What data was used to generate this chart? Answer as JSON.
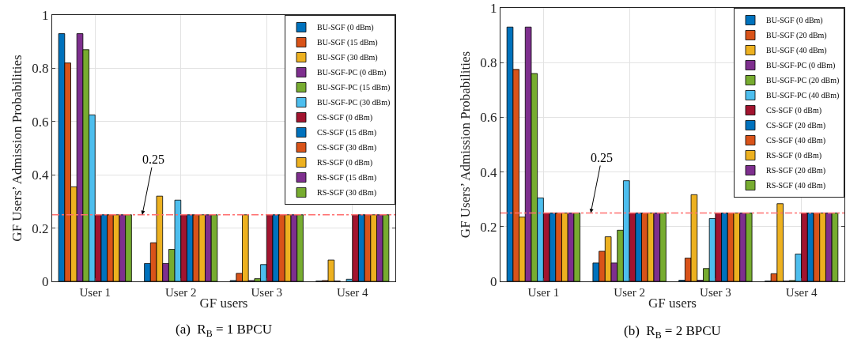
{
  "chart_data": [
    {
      "type": "bar",
      "title": "(a)  R$_{B}$ = 1 BPCU",
      "xlabel": "GF users",
      "ylabel": "GF Users’ Admission Probabilities",
      "categories": [
        "User 1",
        "User 2",
        "User 3",
        "User 4"
      ],
      "ylim": [
        0,
        1
      ],
      "yticks": [
        0,
        0.2,
        0.4,
        0.6,
        0.8,
        1
      ],
      "grid": true,
      "legend": "top right",
      "ref_lines": [
        {
          "axis": "y",
          "value": 0.25,
          "label": "0.25",
          "color": "#ff6f6f",
          "line_style": "dashdot"
        }
      ],
      "series": [
        {
          "name": "BU-SGF (0 dBm)",
          "color": "#0072bd",
          "values": [
            0.93,
            0.067,
            0.003,
            0.001
          ]
        },
        {
          "name": "BU-SGF (15 dBm)",
          "color": "#d95319",
          "values": [
            0.82,
            0.145,
            0.03,
            0.003
          ]
        },
        {
          "name": "BU-SGF (30 dBm)",
          "color": "#edb120",
          "values": [
            0.355,
            0.32,
            0.25,
            0.08
          ]
        },
        {
          "name": "BU-SGF-PC (0 dBm)",
          "color": "#7e2f8e",
          "values": [
            0.93,
            0.067,
            0.003,
            0.001
          ]
        },
        {
          "name": "BU-SGF-PC (15 dBm)",
          "color": "#77ac30",
          "values": [
            0.87,
            0.12,
            0.01,
            null
          ]
        },
        {
          "name": "BU-SGF-PC (30 dBm)",
          "color": "#4dbeee",
          "values": [
            0.625,
            0.305,
            0.063,
            0.008
          ]
        },
        {
          "name": "CS-SGF (0 dBm)",
          "color": "#a2142f",
          "values": [
            0.25,
            0.25,
            0.25,
            0.25
          ]
        },
        {
          "name": "CS-SGF (15 dBm)",
          "color": "#0072bd",
          "values": [
            0.25,
            0.25,
            0.25,
            0.25
          ]
        },
        {
          "name": "CS-SGF (30 dBm)",
          "color": "#d95319",
          "values": [
            0.25,
            0.25,
            0.25,
            0.25
          ]
        },
        {
          "name": "RS-SGF (0 dBm)",
          "color": "#edb120",
          "values": [
            0.25,
            0.25,
            0.25,
            0.25
          ]
        },
        {
          "name": "RS-SGF (15 dBm)",
          "color": "#7e2f8e",
          "values": [
            0.25,
            0.25,
            0.25,
            0.25
          ]
        },
        {
          "name": "RS-SGF (30 dBm)",
          "color": "#77ac30",
          "values": [
            0.25,
            0.25,
            0.25,
            0.25
          ]
        }
      ]
    },
    {
      "type": "bar",
      "title": "(b)  R$_{B}$ = 2 BPCU",
      "xlabel": "GF users",
      "ylabel": "GF Users’ Admission Probabilities",
      "categories": [
        "User 1",
        "User 2",
        "User 3",
        "User 4"
      ],
      "ylim": [
        0,
        1
      ],
      "yticks": [
        0,
        0.2,
        0.4,
        0.6,
        0.8,
        1
      ],
      "grid": true,
      "legend": "top right",
      "ref_lines": [
        {
          "axis": "y",
          "value": 0.25,
          "label": "0.25",
          "color": "#ff6f6f",
          "line_style": "dashdot"
        }
      ],
      "series": [
        {
          "name": "BU-SGF (0 dBm)",
          "color": "#0072bd",
          "values": [
            0.93,
            0.067,
            0.004,
            0.001
          ]
        },
        {
          "name": "BU-SGF (20 dBm)",
          "color": "#d95319",
          "values": [
            0.775,
            0.11,
            0.085,
            0.028
          ]
        },
        {
          "name": "BU-SGF (40 dBm)",
          "color": "#edb120",
          "values": [
            0.235,
            0.163,
            0.317,
            0.284
          ]
        },
        {
          "name": "BU-SGF-PC (0 dBm)",
          "color": "#7e2f8e",
          "values": [
            0.93,
            0.067,
            0.004,
            0.001
          ]
        },
        {
          "name": "BU-SGF-PC (20 dBm)",
          "color": "#77ac30",
          "values": [
            0.76,
            0.187,
            0.047,
            0.003
          ]
        },
        {
          "name": "BU-SGF-PC (40 dBm)",
          "color": "#4dbeee",
          "values": [
            0.305,
            0.368,
            0.23,
            0.1
          ]
        },
        {
          "name": "CS-SGF (0 dBm)",
          "color": "#a2142f",
          "values": [
            0.25,
            0.25,
            0.25,
            0.25
          ]
        },
        {
          "name": "CS-SGF (20 dBm)",
          "color": "#0072bd",
          "values": [
            0.25,
            0.25,
            0.25,
            0.25
          ]
        },
        {
          "name": "CS-SGF (40 dBm)",
          "color": "#d95319",
          "values": [
            0.25,
            0.25,
            0.25,
            0.25
          ]
        },
        {
          "name": "RS-SGF (0 dBm)",
          "color": "#edb120",
          "values": [
            0.25,
            0.25,
            0.25,
            0.25
          ]
        },
        {
          "name": "RS-SGF (20 dBm)",
          "color": "#7e2f8e",
          "values": [
            0.25,
            0.25,
            0.25,
            0.25
          ]
        },
        {
          "name": "RS-SGF (40 dBm)",
          "color": "#77ac30",
          "values": [
            0.25,
            0.25,
            0.25,
            0.25
          ]
        }
      ]
    }
  ]
}
